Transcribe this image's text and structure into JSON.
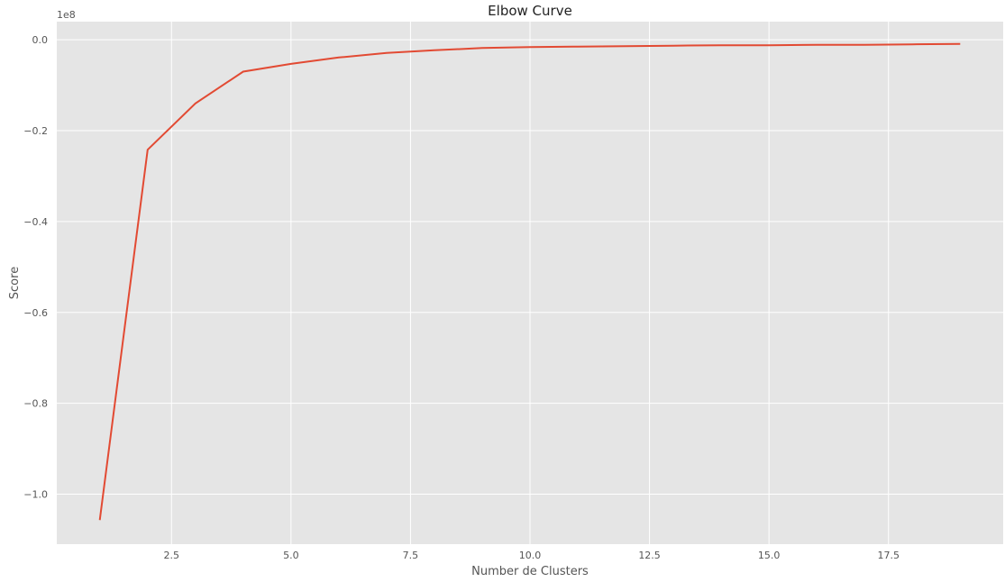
{
  "chart_data": {
    "type": "line",
    "title": "Elbow Curve",
    "xlabel": "Number de Clusters",
    "ylabel": "Score",
    "offset_text": "1e8",
    "x": [
      1,
      2,
      3,
      4,
      5,
      6,
      7,
      8,
      9,
      10,
      11,
      12,
      13,
      14,
      15,
      16,
      17,
      18,
      19
    ],
    "series": [
      {
        "values": [
          -1.057,
          -0.242,
          -0.14,
          -0.07,
          -0.053,
          -0.039,
          -0.029,
          -0.023,
          -0.018,
          -0.016,
          -0.015,
          -0.014,
          -0.013,
          -0.012,
          -0.012,
          -0.011,
          -0.011,
          -0.01,
          -0.009
        ]
      }
    ],
    "xlim": [
      0.1,
      19.9
    ],
    "ylim": [
      -1.11,
      0.04
    ],
    "xticks": [
      2.5,
      5.0,
      7.5,
      10.0,
      12.5,
      15.0,
      17.5
    ],
    "xtick_labels": [
      "2.5",
      "5.0",
      "7.5",
      "10.0",
      "12.5",
      "15.0",
      "17.5"
    ],
    "yticks": [
      0.0,
      -0.2,
      -0.4,
      -0.6,
      -0.8,
      -1.0
    ],
    "ytick_labels": [
      "0.0",
      "−0.2",
      "−0.4",
      "−0.6",
      "−0.8",
      "−1.0"
    ],
    "grid": true,
    "colors": {
      "background": "#e5e5e5",
      "grid": "#ffffff",
      "line": "#e24a33"
    }
  }
}
